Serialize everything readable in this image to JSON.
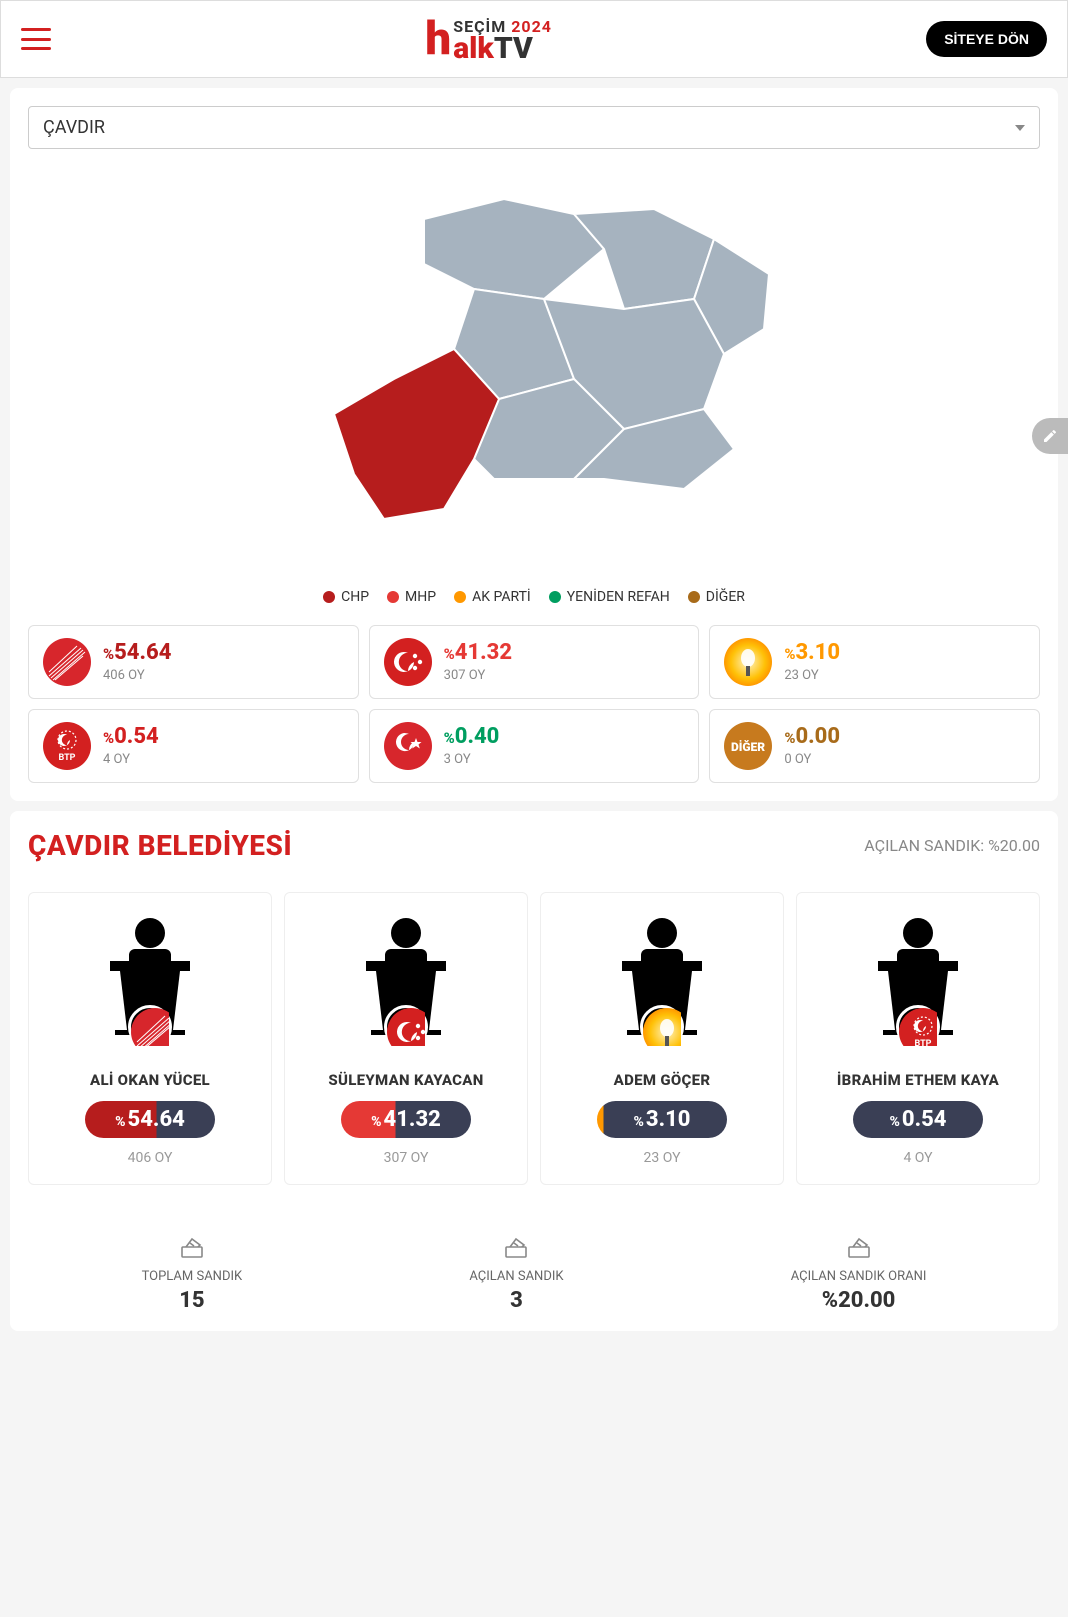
{
  "header": {
    "brand_pre": "SEÇİM",
    "brand_year": "2024",
    "brand_bottom_red": "alk",
    "brand_bottom_black": "TV",
    "back_label": "SİTEYE DÖN"
  },
  "colors": {
    "chp": "#b61d1d",
    "mhp": "#e53935",
    "akp": "#ff9800",
    "btp": "#d32020",
    "yrp": "#d7262c",
    "yrp_alt": "#009e60",
    "diger": "#a86b1a",
    "map_base": "#a6b3bf",
    "map_border": "#ffffff"
  },
  "district": {
    "name": "ÇAVDIR"
  },
  "legend": [
    {
      "label": "CHP",
      "color": "#b61d1d"
    },
    {
      "label": "MHP",
      "color": "#e53935"
    },
    {
      "label": "AK PARTİ",
      "color": "#ff9800"
    },
    {
      "label": "YENİDEN REFAH",
      "color": "#009e60"
    },
    {
      "label": "DİĞER",
      "color": "#a86b1a"
    }
  ],
  "parties": [
    {
      "key": "chp",
      "name": "CHP",
      "pct": "54.64",
      "votes": "406 OY",
      "cls": "chp"
    },
    {
      "key": "mhp",
      "name": "MHP",
      "pct": "41.32",
      "votes": "307 OY",
      "cls": "mhp"
    },
    {
      "key": "akp",
      "name": "AKP",
      "pct": "3.10",
      "votes": "23 OY",
      "cls": "akp"
    },
    {
      "key": "btp",
      "name": "BTP",
      "pct": "0.54",
      "votes": "4 OY",
      "cls": "btp"
    },
    {
      "key": "yrp",
      "name": "YRP",
      "pct": "0.40",
      "votes": "3 OY",
      "cls": "yrp"
    },
    {
      "key": "diger",
      "name": "DİĞER",
      "pct": "0.00",
      "votes": "0 OY",
      "cls": "diger"
    }
  ],
  "section": {
    "title": "ÇAVDIR BELEDİYESİ",
    "opened_label": "AÇILAN SANDIK: %20.00"
  },
  "candidates": [
    {
      "name": "ALİ OKAN YÜCEL",
      "party_cls": "chp",
      "pill_cls": "pill-left-chp",
      "pct": "54.64",
      "votes": "406 OY"
    },
    {
      "name": "SÜLEYMAN KAYACAN",
      "party_cls": "mhp",
      "pill_cls": "pill-left-mhp",
      "pct": "41.32",
      "votes": "307 OY"
    },
    {
      "name": "ADEM GÖÇER",
      "party_cls": "akp",
      "pill_cls": "pill-left-akp",
      "pct": "3.10",
      "votes": "23 OY"
    },
    {
      "name": "İBRAHİM ETHEM KAYA",
      "party_cls": "btp",
      "pill_cls": "pill-dark",
      "pct": "0.54",
      "votes": "4 OY"
    }
  ],
  "stats": [
    {
      "label": "TOPLAM SANDIK",
      "value": "15"
    },
    {
      "label": "AÇILAN SANDIK",
      "value": "3"
    },
    {
      "label": "AÇILAN SANDIK ORANI",
      "value": "%20.00"
    }
  ],
  "pct_symbol": "%"
}
